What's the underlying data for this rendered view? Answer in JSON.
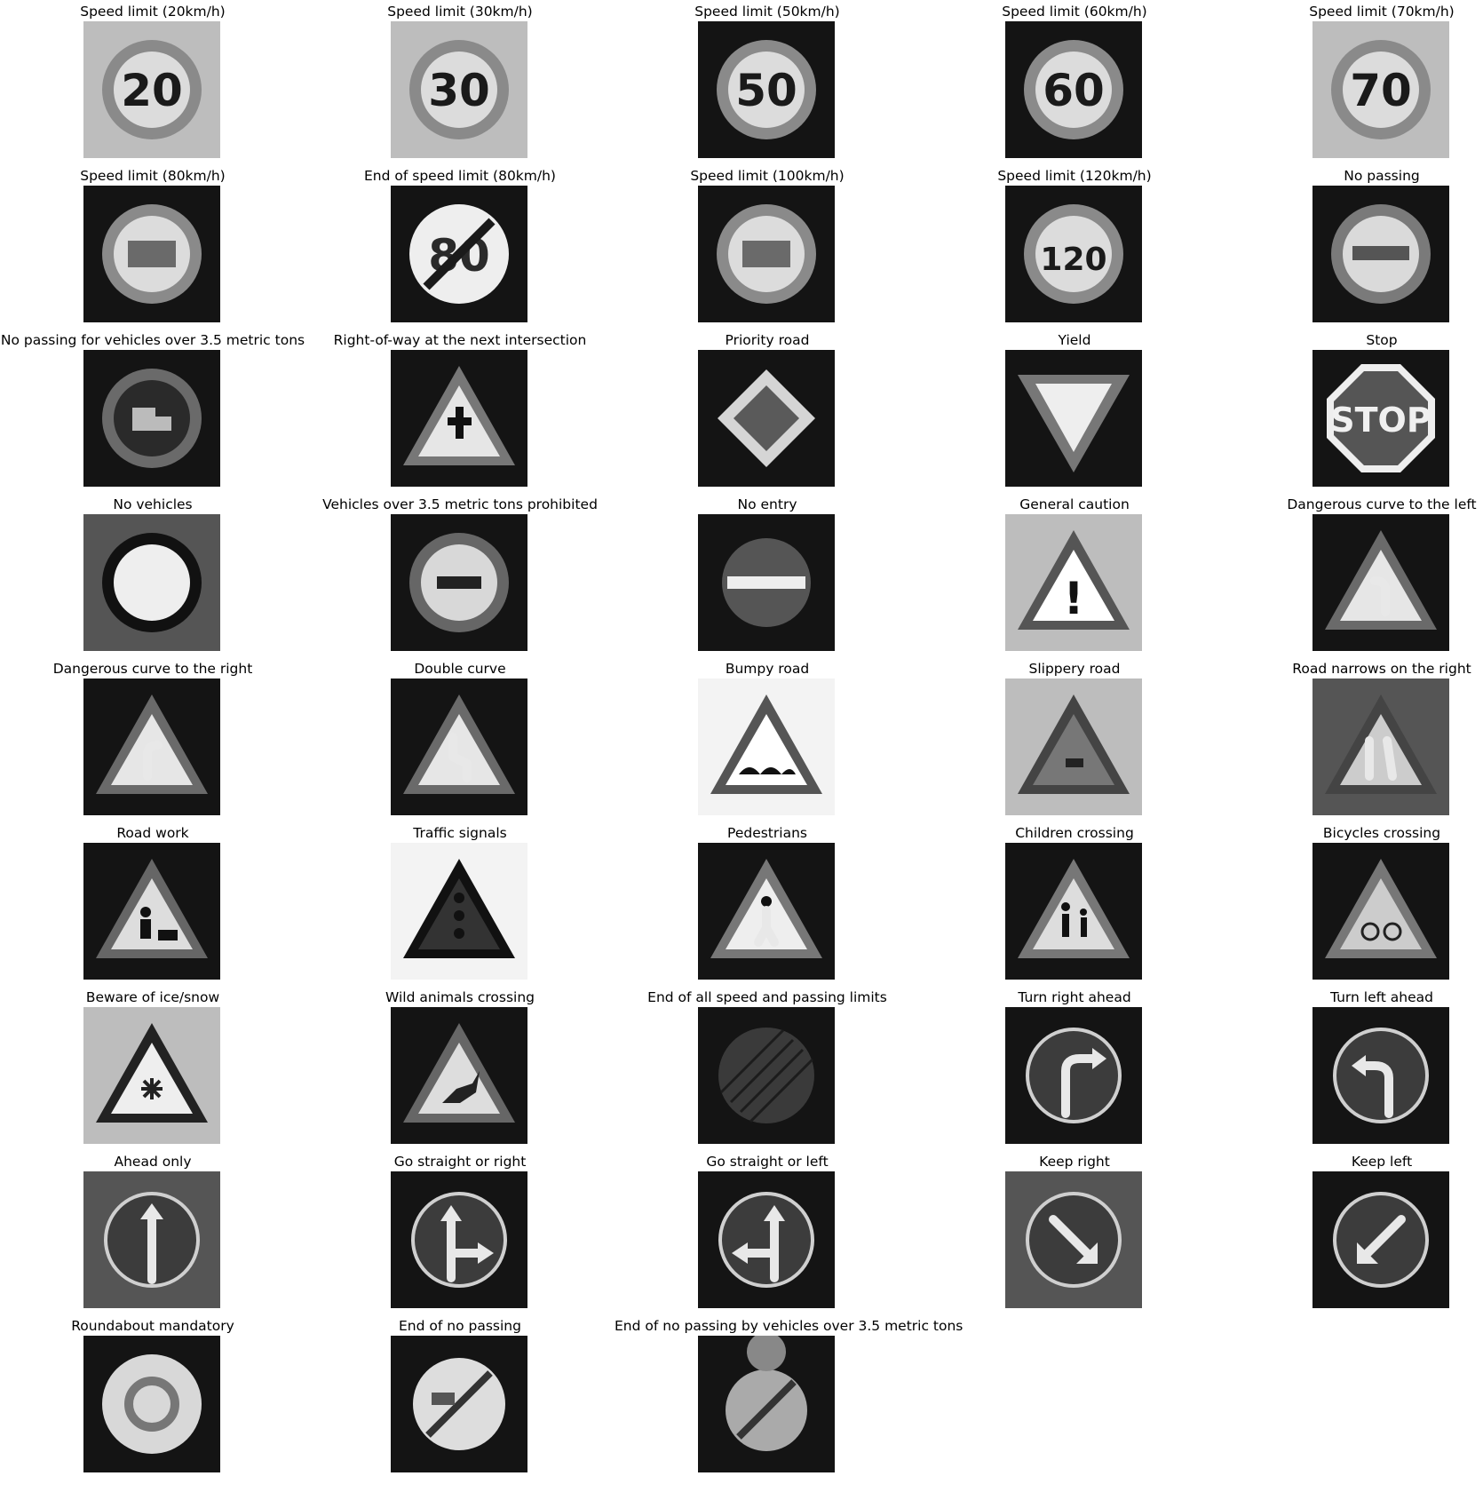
{
  "figure": {
    "columns": 5,
    "background": "#ffffff",
    "title_color": "#000000",
    "thumbnail_palette": "grayscale",
    "panels": [
      {
        "title": "Speed limit (20km/h)",
        "icon": "speed-limit-sign",
        "sign_text": "20",
        "background": "light"
      },
      {
        "title": "Speed limit (30km/h)",
        "icon": "speed-limit-sign",
        "sign_text": "30",
        "background": "light"
      },
      {
        "title": "Speed limit (50km/h)",
        "icon": "speed-limit-sign",
        "sign_text": "50",
        "background": "dark"
      },
      {
        "title": "Speed limit (60km/h)",
        "icon": "speed-limit-sign",
        "sign_text": "60",
        "background": "dark"
      },
      {
        "title": "Speed limit (70km/h)",
        "icon": "speed-limit-sign",
        "sign_text": "70",
        "background": "light"
      },
      {
        "title": "Speed limit (80km/h)",
        "icon": "speed-limit-sign",
        "sign_text": "",
        "background": "dark"
      },
      {
        "title": "End of speed limit (80km/h)",
        "icon": "end-of-speed-limit-sign",
        "sign_text": "80",
        "background": "dark"
      },
      {
        "title": "Speed limit (100km/h)",
        "icon": "speed-limit-sign",
        "sign_text": "",
        "background": "dark"
      },
      {
        "title": "Speed limit (120km/h)",
        "icon": "speed-limit-sign",
        "sign_text": "120",
        "background": "dark"
      },
      {
        "title": "No passing",
        "icon": "no-passing-sign",
        "sign_text": "",
        "background": "dark"
      },
      {
        "title": "No passing for vehicles over 3.5 metric tons",
        "icon": "no-passing-trucks-sign",
        "sign_text": "",
        "background": "dark"
      },
      {
        "title": "Right-of-way at the next intersection",
        "icon": "right-of-way-sign",
        "sign_text": "",
        "background": "dark"
      },
      {
        "title": "Priority road",
        "icon": "priority-road-sign",
        "sign_text": "",
        "background": "dark"
      },
      {
        "title": "Yield",
        "icon": "yield-sign",
        "sign_text": "",
        "background": "dark"
      },
      {
        "title": "Stop",
        "icon": "stop-sign",
        "sign_text": "STOP",
        "background": "dark"
      },
      {
        "title": "No vehicles",
        "icon": "no-vehicles-sign",
        "sign_text": "",
        "background": "mid"
      },
      {
        "title": "Vehicles over 3.5 metric tons prohibited",
        "icon": "trucks-prohibited-sign",
        "sign_text": "",
        "background": "dark"
      },
      {
        "title": "No entry",
        "icon": "no-entry-sign",
        "sign_text": "",
        "background": "dark"
      },
      {
        "title": "General caution",
        "icon": "general-caution-sign",
        "sign_text": "!",
        "background": "light"
      },
      {
        "title": "Dangerous curve to the left",
        "icon": "curve-left-sign",
        "sign_text": "",
        "background": "dark"
      },
      {
        "title": "Dangerous curve to the right",
        "icon": "curve-right-sign",
        "sign_text": "",
        "background": "dark"
      },
      {
        "title": "Double curve",
        "icon": "double-curve-sign",
        "sign_text": "",
        "background": "dark"
      },
      {
        "title": "Bumpy road",
        "icon": "bumpy-road-sign",
        "sign_text": "",
        "background": "white"
      },
      {
        "title": "Slippery road",
        "icon": "slippery-road-sign",
        "sign_text": "",
        "background": "light"
      },
      {
        "title": "Road narrows on the right",
        "icon": "road-narrows-sign",
        "sign_text": "",
        "background": "mid"
      },
      {
        "title": "Road work",
        "icon": "road-work-sign",
        "sign_text": "",
        "background": "dark"
      },
      {
        "title": "Traffic signals",
        "icon": "traffic-signals-sign",
        "sign_text": "",
        "background": "white"
      },
      {
        "title": "Pedestrians",
        "icon": "pedestrians-sign",
        "sign_text": "",
        "background": "dark"
      },
      {
        "title": "Children crossing",
        "icon": "children-crossing-sign",
        "sign_text": "",
        "background": "dark"
      },
      {
        "title": "Bicycles crossing",
        "icon": "bicycles-crossing-sign",
        "sign_text": "",
        "background": "dark"
      },
      {
        "title": "Beware of ice/snow",
        "icon": "ice-snow-sign",
        "sign_text": "",
        "background": "light"
      },
      {
        "title": "Wild animals crossing",
        "icon": "wild-animals-sign",
        "sign_text": "",
        "background": "dark"
      },
      {
        "title": "End of all speed and passing limits",
        "icon": "end-all-limits-sign",
        "sign_text": "",
        "background": "dark"
      },
      {
        "title": "Turn right ahead",
        "icon": "turn-right-ahead-sign",
        "sign_text": "",
        "background": "dark"
      },
      {
        "title": "Turn left ahead",
        "icon": "turn-left-ahead-sign",
        "sign_text": "",
        "background": "dark"
      },
      {
        "title": "Ahead only",
        "icon": "ahead-only-sign",
        "sign_text": "",
        "background": "mid"
      },
      {
        "title": "Go straight or right",
        "icon": "straight-or-right-sign",
        "sign_text": "",
        "background": "dark"
      },
      {
        "title": "Go straight or left",
        "icon": "straight-or-left-sign",
        "sign_text": "",
        "background": "dark"
      },
      {
        "title": "Keep right",
        "icon": "keep-right-sign",
        "sign_text": "",
        "background": "mid"
      },
      {
        "title": "Keep left",
        "icon": "keep-left-sign",
        "sign_text": "",
        "background": "dark"
      },
      {
        "title": "Roundabout mandatory",
        "icon": "roundabout-sign",
        "sign_text": "",
        "background": "dark"
      },
      {
        "title": "End of no passing",
        "icon": "end-no-passing-sign",
        "sign_text": "",
        "background": "dark"
      },
      {
        "title": "End of no passing by vehicles over 3.5 metric tons",
        "icon": "end-no-passing-trucks-sign",
        "sign_text": "",
        "background": "dark"
      }
    ]
  }
}
